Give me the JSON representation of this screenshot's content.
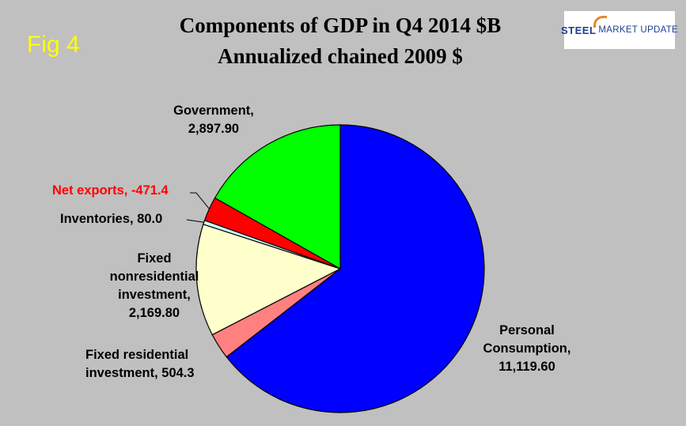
{
  "fig_label": "Fig 4",
  "logo": {
    "text_bold": "STEEL",
    "text_rest": "MARKET UPDATE"
  },
  "chart_data": {
    "type": "pie",
    "title": "Components of GDP in Q4 2014 $B",
    "subtitle": "Annualized chained 2009 $",
    "slices": [
      {
        "name": "Personal Consumption",
        "value": 11119.6,
        "color": "#0000ff",
        "label_lines": [
          "Personal",
          "Consumption,",
          "11,119.60"
        ]
      },
      {
        "name": "Fixed residential investment",
        "value": 504.3,
        "color": "#ff8080",
        "label_lines": [
          "Fixed residential",
          "investment, 504.3"
        ]
      },
      {
        "name": "Fixed nonresidential investment",
        "value": 2169.8,
        "color": "#ffffcc",
        "label_lines": [
          "Fixed",
          "nonresidential",
          "investment,",
          "2,169.80"
        ]
      },
      {
        "name": "Inventories",
        "value": 80.0,
        "color": "#ccffff",
        "label_lines": [
          "Inventories, 80.0"
        ]
      },
      {
        "name": "Net exports",
        "value": -471.4,
        "color": "#ff0000",
        "label_lines": [
          "Net exports, -471.4"
        ]
      },
      {
        "name": "Government",
        "value": 2897.9,
        "color": "#00ff00",
        "label_lines": [
          "Government,",
          "2,897.90"
        ]
      }
    ]
  }
}
